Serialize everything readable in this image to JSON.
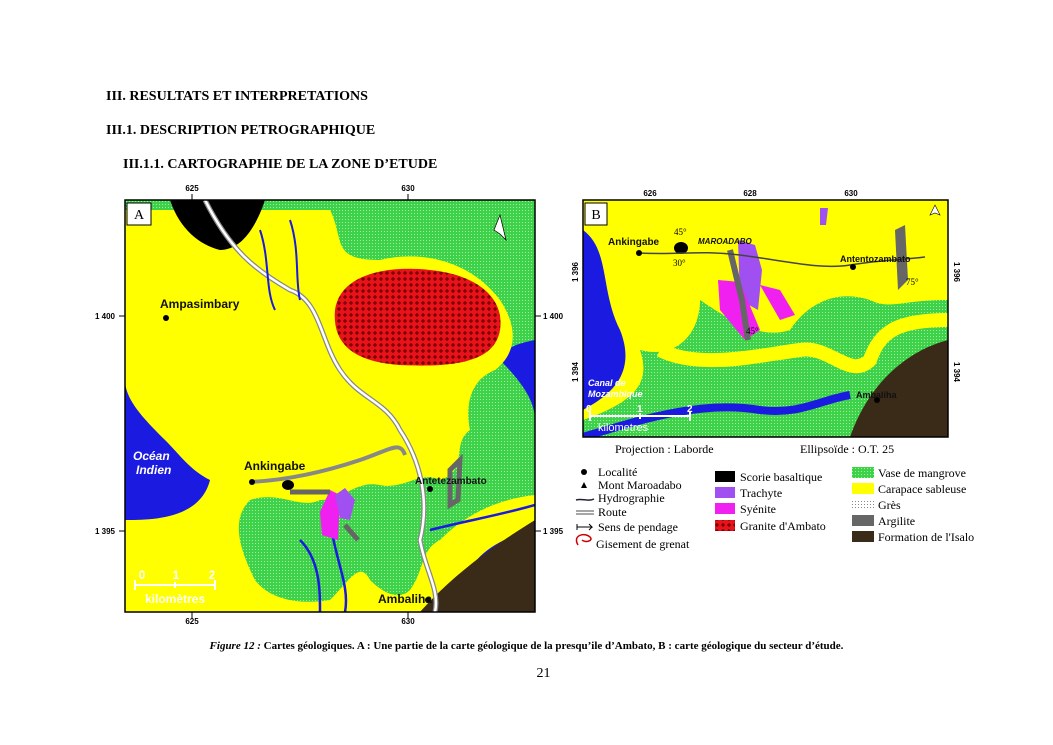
{
  "headings": [
    "III. RESULTATS ET INTERPRETATIONS",
    "III.1. DESCRIPTION PETROGRAPHIQUE",
    "III.1.1. CARTOGRAPHIE DE LA ZONE D’ETUDE"
  ],
  "map_a": {
    "panel": "A",
    "top_ticks": [
      "625",
      "630"
    ],
    "bottom_ticks": [
      "625",
      "630"
    ],
    "left_ticks": [
      "1 400",
      "1 395"
    ],
    "right_ticks": [
      "1 400",
      "1 395"
    ],
    "places": [
      "Ampasimbary",
      "Océan",
      "Indien",
      "Ankingabe",
      "Antetezambato",
      "Ambaliha"
    ],
    "scale": [
      "0",
      "1",
      "2",
      "kilomètres"
    ]
  },
  "map_b": {
    "panel": "B",
    "top_ticks": [
      "626",
      "628",
      "630"
    ],
    "left_ticks": [
      "1 396",
      "1 394"
    ],
    "right_ticks": [
      "1 396",
      "1 394"
    ],
    "places": [
      "Ankingabe",
      "MAROADABO",
      "Antentozambato",
      "Ambaliha",
      "Canal de",
      "Mozambique"
    ],
    "dips": [
      "45°",
      "30°",
      "75°",
      "45°"
    ],
    "scale": [
      "0",
      "1",
      "2",
      "kilometres"
    ],
    "projection": "Projection : Laborde",
    "ellipsoid": "Ellipsoïde : O.T. 25"
  },
  "legend": {
    "symbols": [
      "Localité",
      "Mont Maroadabo",
      "Hydrographie",
      "Route",
      "Sens de pendage",
      "Gisement de grenat"
    ],
    "units_1": [
      "Scorie basaltique",
      "Trachyte",
      "Syénite",
      "Granite d'Ambato"
    ],
    "units_2": [
      "Vase de mangrove",
      "Carapace sableuse",
      "Grès",
      "Argilite",
      "Formation de l'Isalo"
    ]
  },
  "caption": {
    "label": "Figure 12 :",
    "text": "Cartes géologiques. A : Une partie de la carte géologique de la presqu’ile d’Ambato, B : carte géologique du secteur d’étude."
  },
  "page_number": "21"
}
